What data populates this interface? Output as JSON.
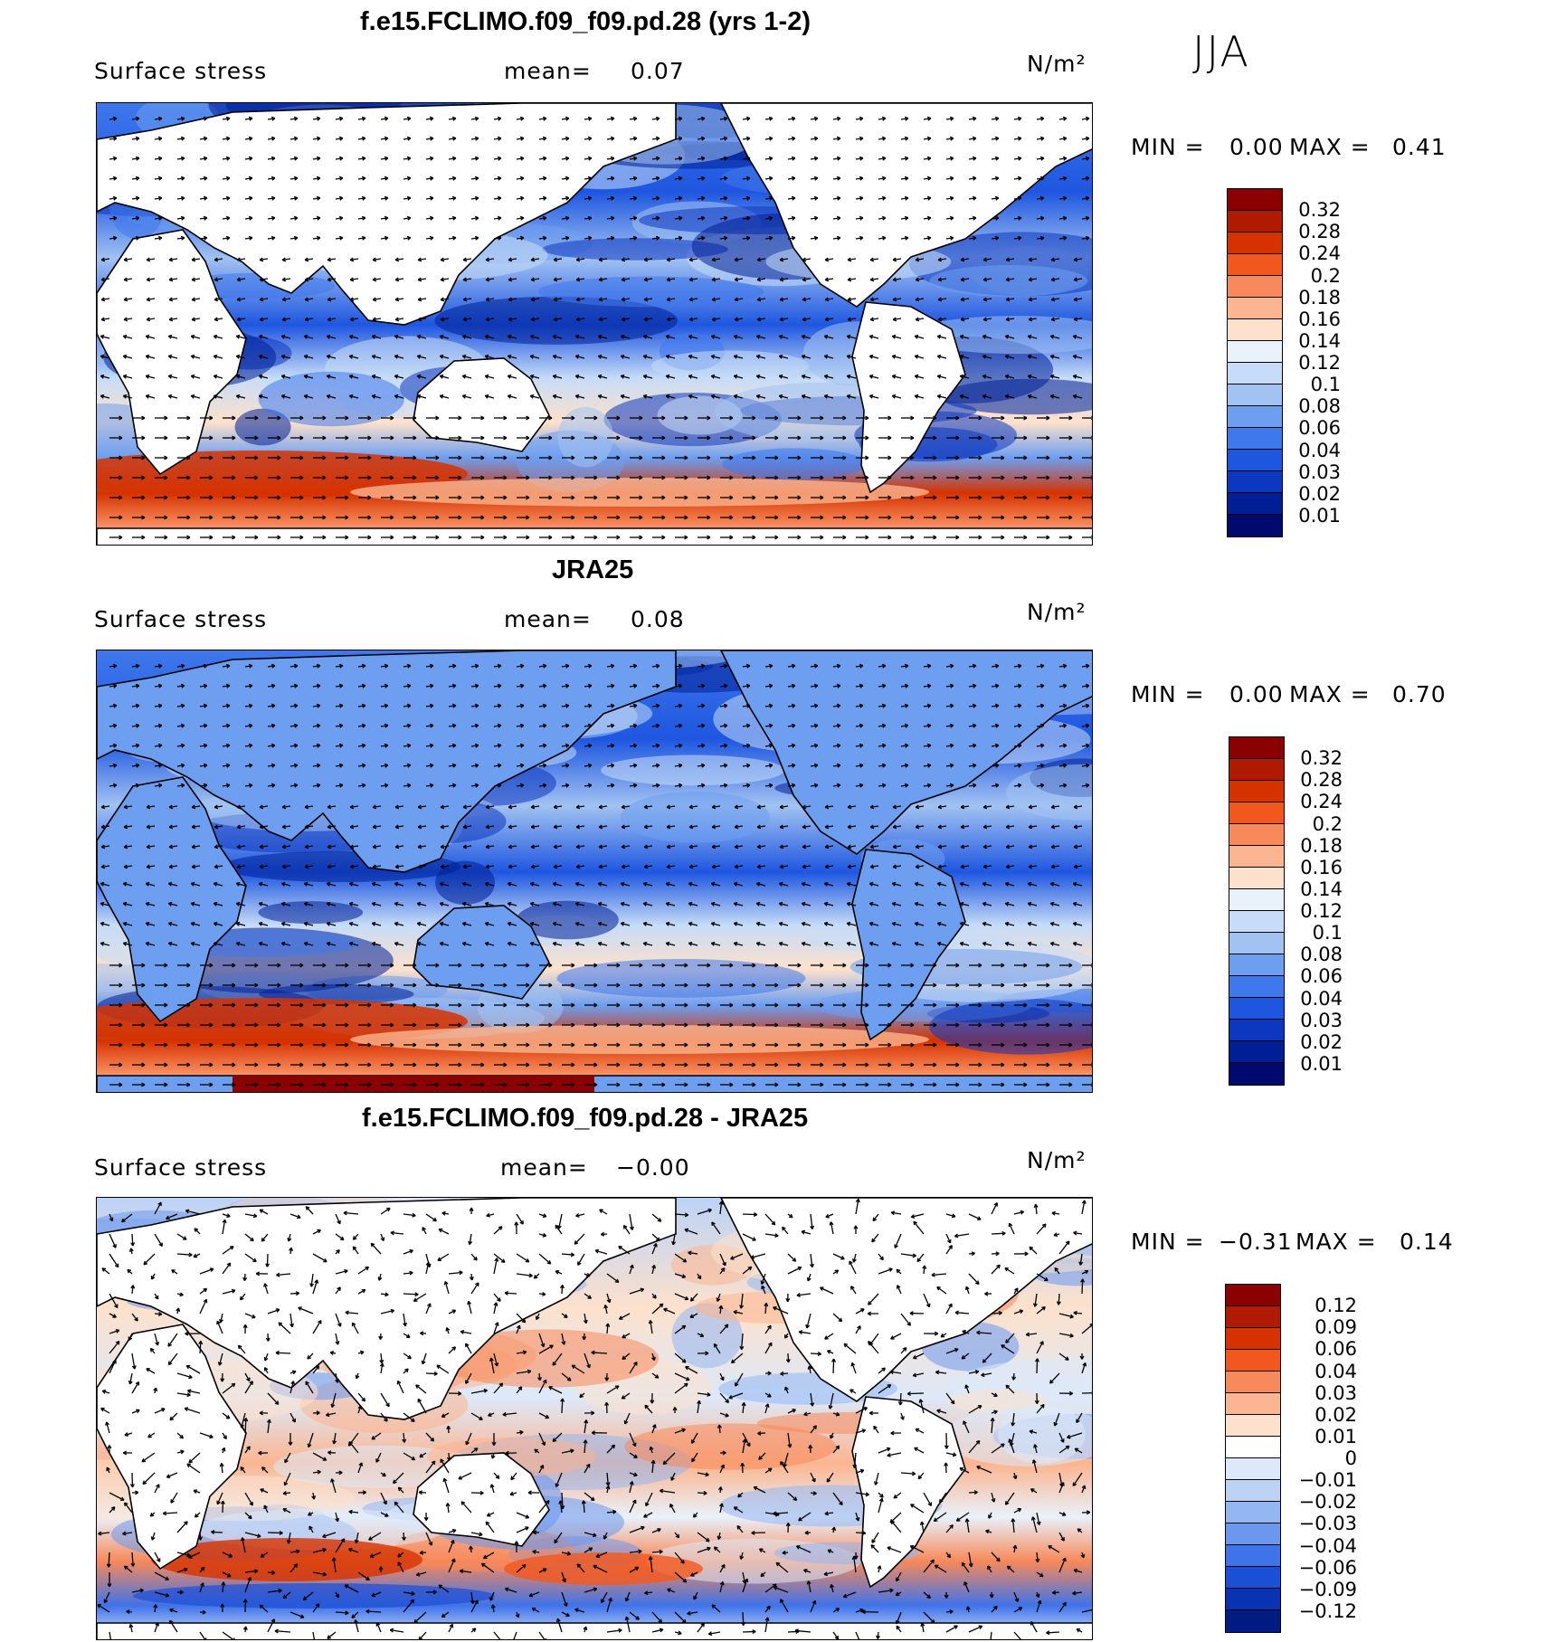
{
  "season": "JJA",
  "units": "N/m²",
  "panels": [
    {
      "title": "f.e15.FCLIMO.f09_f09.pd.28 (yrs 1-2)",
      "variable": "Surface stress",
      "mean_label": "mean=",
      "mean_value": "0.07",
      "min_label": "MIN =",
      "min_value": "0.00",
      "max_label": "MAX =",
      "max_value": "0.41",
      "colorbar": [
        "0.32",
        "0.28",
        "0.24",
        "0.2",
        "0.18",
        "0.16",
        "0.14",
        "0.12",
        "0.1",
        "0.08",
        "0.06",
        "0.04",
        "0.03",
        "0.02",
        "0.01"
      ]
    },
    {
      "title": "JRA25",
      "variable": "Surface stress",
      "mean_label": "mean=",
      "mean_value": "0.08",
      "min_label": "MIN =",
      "min_value": "0.00",
      "max_label": "MAX =",
      "max_value": "0.70",
      "colorbar": [
        "0.32",
        "0.28",
        "0.24",
        "0.2",
        "0.18",
        "0.16",
        "0.14",
        "0.12",
        "0.1",
        "0.08",
        "0.06",
        "0.04",
        "0.03",
        "0.02",
        "0.01"
      ]
    },
    {
      "title": "f.e15.FCLIMO.f09_f09.pd.28 - JRA25",
      "variable": "Surface stress",
      "mean_label": "mean=",
      "mean_value": "−0.00",
      "min_label": "MIN =",
      "min_value": "−0.31",
      "max_label": "MAX =",
      "max_value": "0.14",
      "colorbar": [
        "0.12",
        "0.09",
        "0.06",
        "0.04",
        "0.03",
        "0.02",
        "0.01",
        "0",
        "−0.01",
        "−0.02",
        "−0.03",
        "−0.04",
        "−0.06",
        "−0.09",
        "−0.12"
      ]
    }
  ],
  "colors": {
    "scale16": [
      "#8b0000",
      "#b01a00",
      "#d63200",
      "#f2581e",
      "#f7895a",
      "#fbb590",
      "#fde1cc",
      "#e9f1fb",
      "#c6dcf8",
      "#a2c2f2",
      "#6d9ef0",
      "#3f78ec",
      "#1e56e0",
      "#0c37c0",
      "#001f96",
      "#000a6e"
    ],
    "scale16_diff": [
      "#8b0000",
      "#b01a00",
      "#d63200",
      "#f2581e",
      "#f7895a",
      "#fbb590",
      "#fde1cc",
      "#ffffff",
      "#dde9fa",
      "#bcd3f6",
      "#94b6f2",
      "#6b97ee",
      "#3f73ea",
      "#1b4fd6",
      "#0a33b4",
      "#001c82"
    ],
    "land": "#ffffff",
    "coast": "#000000"
  }
}
